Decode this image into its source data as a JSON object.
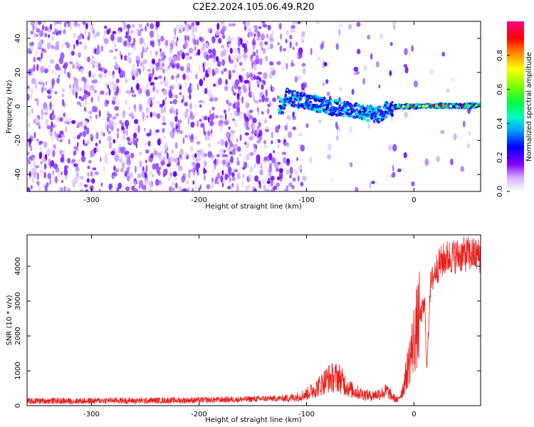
{
  "title": "C2E2.2024.105.06.49.R20",
  "chart_data": [
    {
      "type": "heatmap",
      "xlabel": "Height of straight line (km)",
      "ylabel": "Frequency (Hz)",
      "xlim": [
        -360,
        62
      ],
      "ylim": [
        -50,
        50
      ],
      "xticks": [
        -300,
        -200,
        -100,
        0
      ],
      "yticks": [
        -40,
        -20,
        0,
        20,
        40
      ],
      "colorbar": {
        "label": "Normalized spectral amplitude",
        "range": [
          0,
          1
        ],
        "ticks": [
          0.0,
          0.2,
          0.4,
          0.6,
          0.8
        ],
        "tick_labels": [
          "0.0",
          "0.2",
          "0.4",
          "0.6",
          "0.8"
        ],
        "colormap": [
          "#ffffff",
          "#c080ff",
          "#8000ff",
          "#0000ff",
          "#00c0ff",
          "#00ff80",
          "#80ff00",
          "#ffff00",
          "#ff8000",
          "#ff0000",
          "#ff0080"
        ]
      },
      "signal_track": [
        {
          "x": -120,
          "freq": 6
        },
        {
          "x": -100,
          "freq": 3
        },
        {
          "x": -80,
          "freq": 0
        },
        {
          "x": -60,
          "freq": -2
        },
        {
          "x": -45,
          "freq": -4
        },
        {
          "x": -35,
          "freq": -5
        },
        {
          "x": -25,
          "freq": -2
        },
        {
          "x": -15,
          "freq": 0
        },
        {
          "x": 0,
          "freq": 0
        },
        {
          "x": 20,
          "freq": 0.5
        },
        {
          "x": 40,
          "freq": 0
        },
        {
          "x": 60,
          "freq": 0.5
        }
      ]
    },
    {
      "type": "line",
      "xlabel": "Height of straight line (km)",
      "ylabel": "SNR (10 * v/v)",
      "xlim": [
        -360,
        62
      ],
      "ylim": [
        0,
        4900
      ],
      "xticks": [
        -300,
        -200,
        -100,
        0
      ],
      "yticks": [
        0,
        1000,
        2000,
        3000,
        4000
      ],
      "color": "#e8201c",
      "series": [
        {
          "x": [
            -360,
            -340,
            -320,
            -300,
            -280,
            -260,
            -240,
            -220,
            -200,
            -180,
            -160,
            -140,
            -120,
            -110,
            -100,
            -90,
            -80,
            -70,
            -60,
            -50,
            -40,
            -30,
            -25,
            -20,
            -15,
            -10,
            -5,
            0,
            5,
            10,
            12,
            15,
            20,
            25,
            30,
            40,
            50,
            62
          ],
          "y": [
            130,
            140,
            130,
            140,
            150,
            140,
            150,
            150,
            160,
            170,
            180,
            200,
            210,
            240,
            330,
            520,
            780,
            820,
            480,
            350,
            280,
            360,
            420,
            250,
            150,
            500,
            1200,
            1900,
            2500,
            2900,
            1000,
            3400,
            3900,
            4100,
            4250,
            4300,
            4350,
            4300
          ]
        }
      ]
    }
  ]
}
